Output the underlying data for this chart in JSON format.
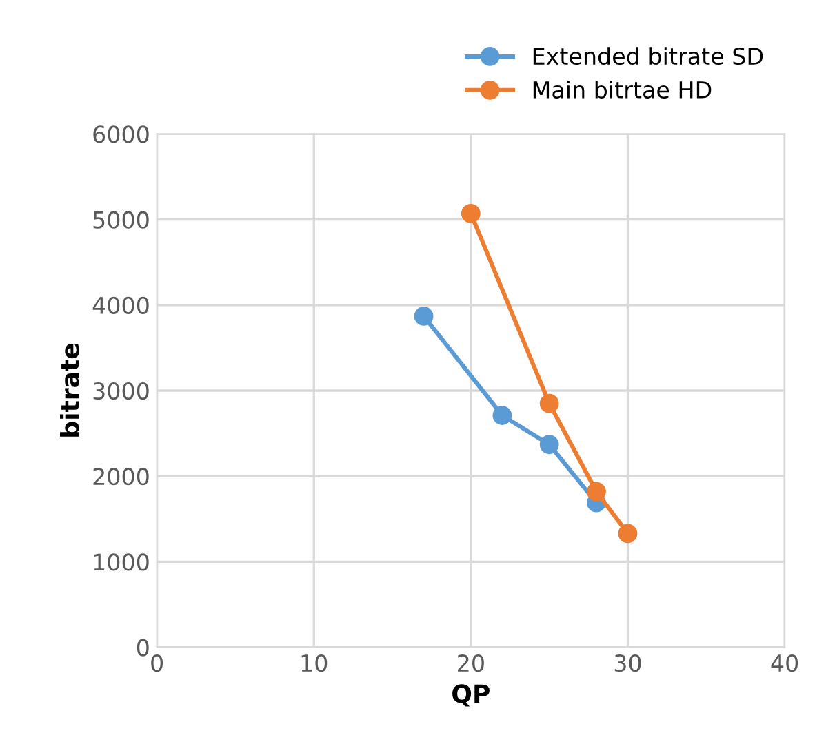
{
  "chart_data": {
    "type": "line",
    "xlabel": "QP",
    "ylabel": "bitrate",
    "xlim": [
      0,
      40
    ],
    "xticks": [
      0,
      10,
      20,
      30,
      40
    ],
    "ylim": [
      0,
      6000
    ],
    "yticks": [
      0,
      1000,
      2000,
      3000,
      4000,
      5000,
      6000
    ],
    "grid": true,
    "legend": "top right",
    "marker": "circle",
    "line_style": "solid",
    "series": [
      {
        "name": "Extended bitrate SD",
        "color": "#5b9bd5",
        "x": [
          17,
          22,
          25,
          28
        ],
        "values": [
          3870,
          2710,
          2370,
          1690
        ]
      },
      {
        "name": "Main bitrtae HD",
        "color": "#ed7d31",
        "x": [
          20,
          25,
          28,
          30
        ],
        "values": [
          5070,
          2850,
          1820,
          1330
        ]
      }
    ]
  }
}
